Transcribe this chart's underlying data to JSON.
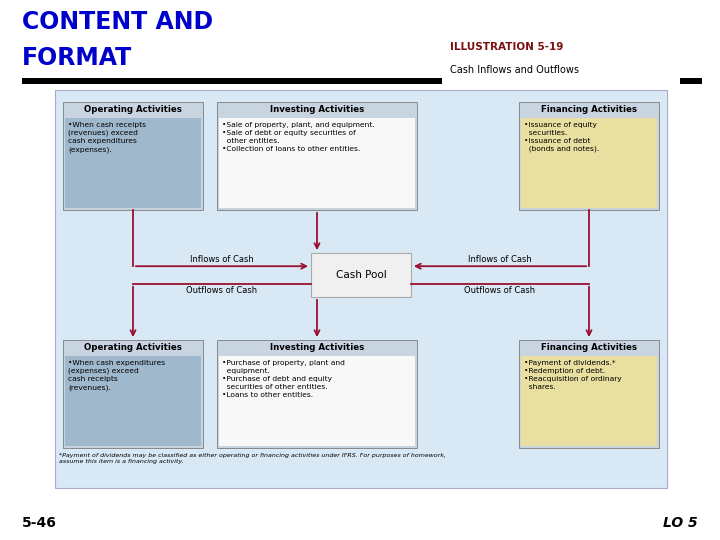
{
  "title_line1": "CONTENT AND",
  "title_line2": "FORMAT",
  "title_color": "#0000CC",
  "illus_label": "ILLUSTRATION 5-19",
  "illus_sublabel": "Cash Inflows and Outflows",
  "illus_label_color": "#7B1010",
  "footer_left": "5-46",
  "footer_right": "LO 5",
  "bg_color": "#ffffff",
  "diagram_bg": "#d8e8f4",
  "arrow_color": "#9B1030",
  "inflow_label": "Inflows of Cash",
  "outflow_label": "Outflows of Cash",
  "center_label": "Cash Pool",
  "top_boxes": [
    {
      "title": "Operating Activities",
      "content": "•When cash receipts\n(revenues) exceed\ncash expenditures\n(expenses).",
      "header_bg": "#c8d4e0",
      "content_bg": "#a0b8cc"
    },
    {
      "title": "Investing Activities",
      "content": "•Sale of property, plant, and equipment.\n•Sale of debt or equity securities of\n  other entities.\n•Collection of loans to other entities.",
      "header_bg": "#c8d4e0",
      "content_bg": "#f8f8f8"
    },
    {
      "title": "Financing Activities",
      "content": "•Issuance of equity\n  securities.\n•Issuance of debt\n  (bonds and notes).",
      "header_bg": "#c8d4e0",
      "content_bg": "#e8dfa0"
    }
  ],
  "bottom_boxes": [
    {
      "title": "Operating Activities",
      "content": "•When cash expenditures\n(expenses) exceed\ncash receipts\n(revenues).",
      "header_bg": "#c8d4e0",
      "content_bg": "#a0b8cc"
    },
    {
      "title": "Investing Activities",
      "content": "•Purchase of property, plant and\n  equipment.\n•Purchase of debt and equity\n  securities of other entities.\n•Loans to other entities.",
      "header_bg": "#c8d4e0",
      "content_bg": "#f8f8f8"
    },
    {
      "title": "Financing Activities",
      "content": "•Payment of dividends.*\n•Redemption of debt.\n•Reacquisition of ordinary\n  shares.",
      "header_bg": "#c8d4e0",
      "content_bg": "#e8dfa0"
    }
  ],
  "footnote": "*Payment of dividends may be classified as either operating or financing activities under IFRS. For purposes of homework,\nassume this item is a financing activity."
}
